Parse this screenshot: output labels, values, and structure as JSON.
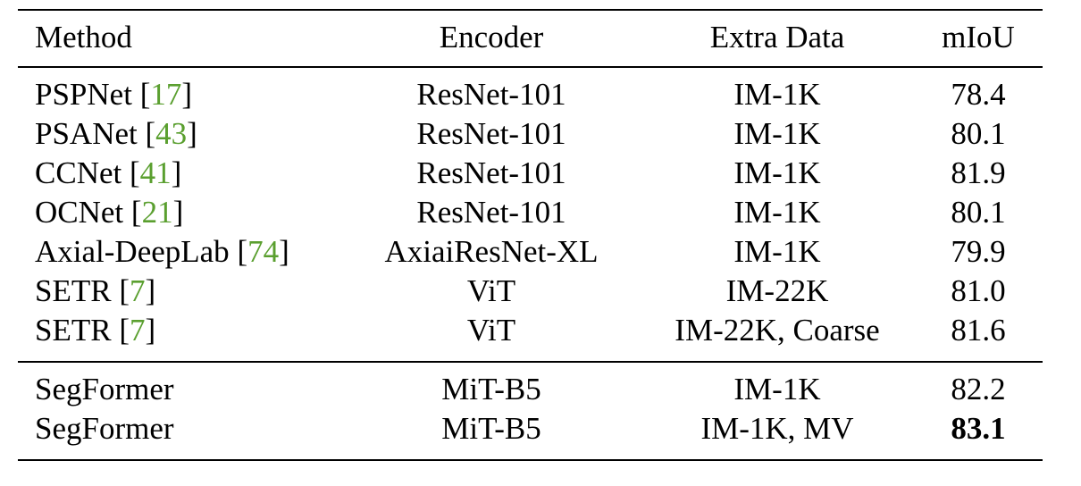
{
  "table": {
    "headers": {
      "method": "Method",
      "encoder": "Encoder",
      "extra_data": "Extra Data",
      "miou": "mIoU"
    },
    "group1": [
      {
        "method": "PSPNet",
        "ref": "17",
        "encoder": "ResNet-101",
        "extra_data": "IM-1K",
        "miou": "78.4"
      },
      {
        "method": "PSANet",
        "ref": "43",
        "encoder": "ResNet-101",
        "extra_data": "IM-1K",
        "miou": "80.1"
      },
      {
        "method": "CCNet",
        "ref": "41",
        "encoder": "ResNet-101",
        "extra_data": "IM-1K",
        "miou": "81.9"
      },
      {
        "method": "OCNet",
        "ref": "21",
        "encoder": "ResNet-101",
        "extra_data": "IM-1K",
        "miou": "80.1"
      },
      {
        "method": "Axial-DeepLab",
        "ref": "74",
        "encoder": "AxiaiResNet-XL",
        "extra_data": "IM-1K",
        "miou": "79.9"
      },
      {
        "method": "SETR",
        "ref": "7",
        "encoder": "ViT",
        "extra_data": "IM-22K",
        "miou": "81.0"
      },
      {
        "method": "SETR",
        "ref": "7",
        "encoder": "ViT",
        "extra_data": "IM-22K, Coarse",
        "miou": "81.6"
      }
    ],
    "group2": [
      {
        "method": "SegFormer",
        "encoder": "MiT-B5",
        "extra_data": "IM-1K",
        "miou": "82.2"
      },
      {
        "method": "SegFormer",
        "encoder": "MiT-B5",
        "extra_data": "IM-1K, MV",
        "miou": "83.1"
      }
    ],
    "best_color": "#000000",
    "ref_color": "#5a9f2f"
  }
}
